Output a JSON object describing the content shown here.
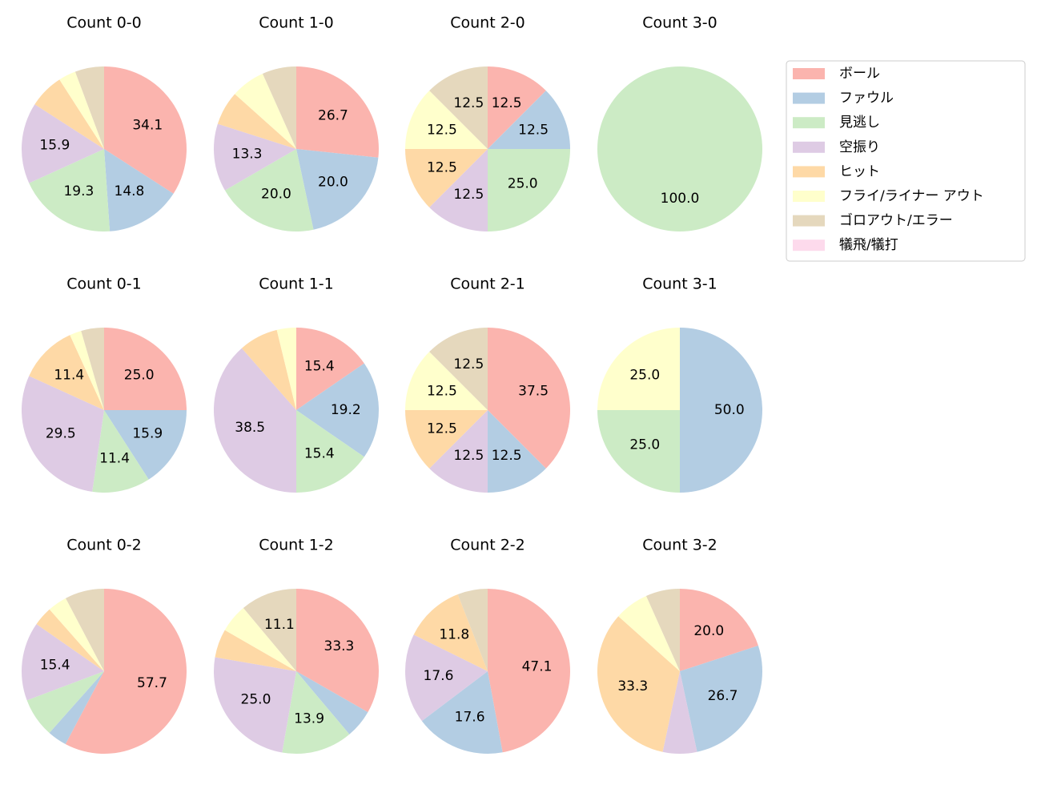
{
  "legend": {
    "categories": [
      "ボール",
      "ファウル",
      "見逃し",
      "空振り",
      "ヒット",
      "フライ/ライナー アウト",
      "ゴロアウト/エラー",
      "犠飛/犠打"
    ],
    "colors": [
      "#fbb4ae",
      "#b3cde3",
      "#ccebc5",
      "#decbe4",
      "#fed9a6",
      "#ffffcc",
      "#e5d8bd",
      "#fddaec"
    ]
  },
  "chart_data": [
    {
      "type": "pie",
      "title": "Count 0-0",
      "values": [
        34.1,
        14.8,
        19.3,
        15.9,
        6.8,
        3.4,
        5.7,
        0
      ],
      "value_labels": [
        "34.1",
        "14.8",
        "19.3",
        "15.9",
        null,
        null,
        null,
        null
      ]
    },
    {
      "type": "pie",
      "title": "Count 1-0",
      "values": [
        26.7,
        20.0,
        20.0,
        13.3,
        6.7,
        6.7,
        6.7,
        0
      ],
      "value_labels": [
        "26.7",
        "20.0",
        "20.0",
        "13.3",
        null,
        null,
        null,
        null
      ]
    },
    {
      "type": "pie",
      "title": "Count 2-0",
      "values": [
        12.5,
        12.5,
        25.0,
        12.5,
        12.5,
        12.5,
        12.5,
        0
      ],
      "value_labels": [
        "12.5",
        "12.5",
        "25.0",
        "12.5",
        "12.5",
        "12.5",
        "12.5",
        null
      ]
    },
    {
      "type": "pie",
      "title": "Count 3-0",
      "values": [
        0,
        0,
        100,
        0,
        0,
        0,
        0,
        0
      ],
      "value_labels": [
        null,
        null,
        "100.0",
        null,
        null,
        null,
        null,
        null
      ]
    },
    {
      "type": "pie",
      "title": "Count 0-1",
      "values": [
        25.0,
        15.9,
        11.4,
        29.5,
        11.4,
        2.3,
        4.5,
        0
      ],
      "value_labels": [
        "25.0",
        "15.9",
        "11.4",
        "29.5",
        "11.4",
        null,
        null,
        null
      ]
    },
    {
      "type": "pie",
      "title": "Count 1-1",
      "values": [
        15.4,
        19.2,
        15.4,
        38.5,
        7.7,
        3.8,
        0,
        0
      ],
      "value_labels": [
        "15.4",
        "19.2",
        "15.4",
        "38.5",
        null,
        null,
        null,
        null
      ]
    },
    {
      "type": "pie",
      "title": "Count 2-1",
      "values": [
        37.5,
        12.5,
        0,
        12.5,
        12.5,
        12.5,
        12.5,
        0
      ],
      "value_labels": [
        "37.5",
        "12.5",
        null,
        "12.5",
        "12.5",
        "12.5",
        "12.5",
        null
      ]
    },
    {
      "type": "pie",
      "title": "Count 3-1",
      "values": [
        0,
        50.0,
        25.0,
        0,
        0,
        25.0,
        0,
        0
      ],
      "value_labels": [
        null,
        "50.0",
        "25.0",
        null,
        null,
        "25.0",
        null,
        null
      ]
    },
    {
      "type": "pie",
      "title": "Count 0-2",
      "values": [
        57.7,
        3.8,
        7.7,
        15.4,
        3.8,
        3.8,
        7.7,
        0
      ],
      "value_labels": [
        "57.7",
        null,
        null,
        "15.4",
        null,
        null,
        null,
        null
      ]
    },
    {
      "type": "pie",
      "title": "Count 1-2",
      "values": [
        33.3,
        5.6,
        13.9,
        25.0,
        5.6,
        5.6,
        11.1,
        0
      ],
      "value_labels": [
        "33.3",
        null,
        "13.9",
        "25.0",
        null,
        null,
        "11.1",
        null
      ]
    },
    {
      "type": "pie",
      "title": "Count 2-2",
      "values": [
        47.1,
        17.6,
        0,
        17.6,
        11.8,
        0,
        5.9,
        0
      ],
      "value_labels": [
        "47.1",
        "17.6",
        null,
        "17.6",
        "11.8",
        null,
        null,
        null
      ]
    },
    {
      "type": "pie",
      "title": "Count 3-2",
      "values": [
        20.0,
        26.7,
        0,
        6.7,
        33.3,
        6.7,
        6.7,
        0
      ],
      "value_labels": [
        "20.0",
        "26.7",
        null,
        null,
        "33.3",
        null,
        null,
        null
      ]
    }
  ]
}
